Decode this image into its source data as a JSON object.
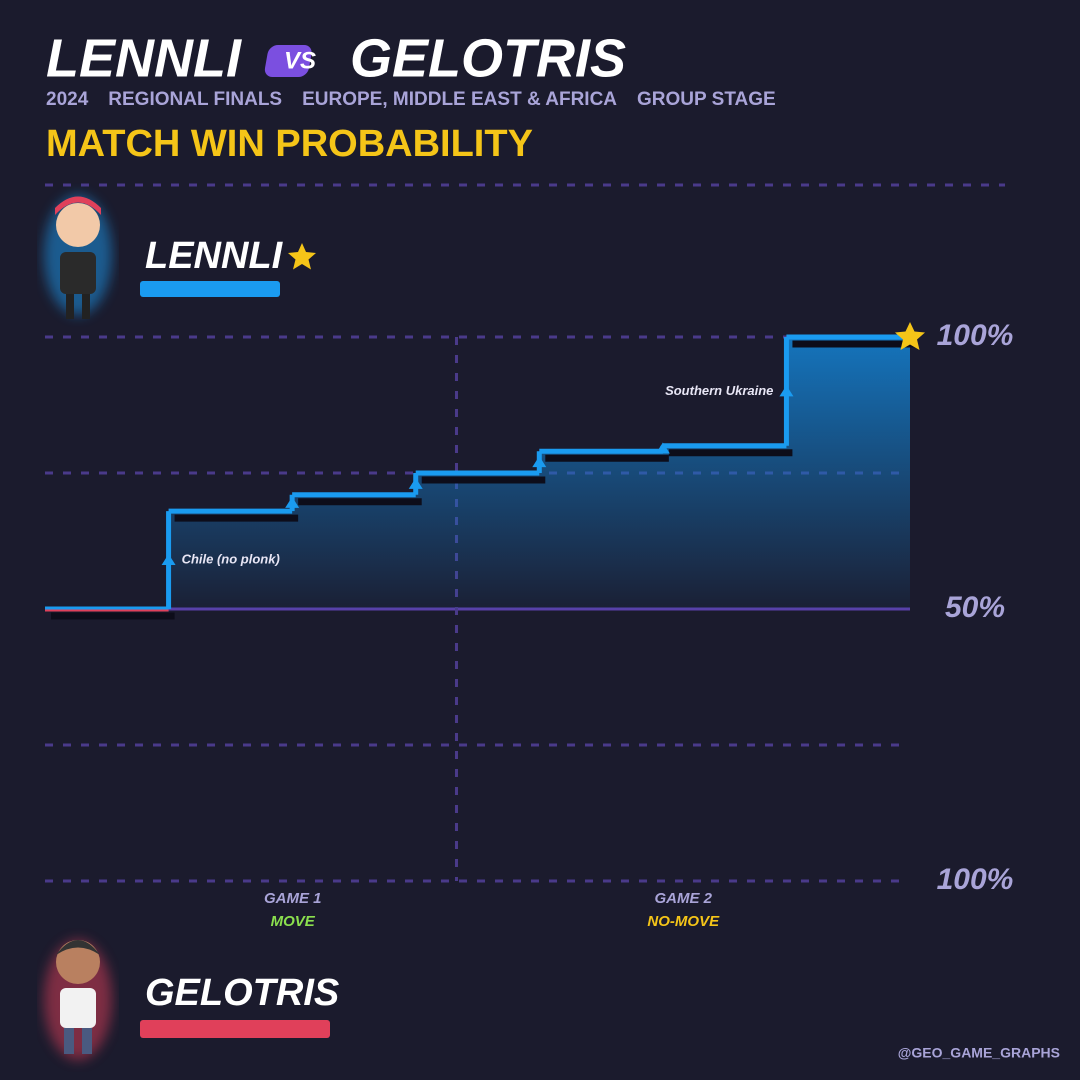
{
  "header": {
    "title_left": "LENNLI",
    "title_vs": "VS",
    "title_right": "GELOTRIS",
    "subtitle": [
      "2024",
      "REGIONAL FINALS",
      "EUROPE, MIDDLE EAST & AFRICA",
      "GROUP STAGE"
    ],
    "heading": "MATCH WIN PROBABILITY"
  },
  "chart_data": {
    "type": "step",
    "x": [
      0,
      1,
      2,
      3,
      4,
      5,
      6,
      7
    ],
    "xlim": [
      0,
      7
    ],
    "series": [
      {
        "name": "LENNLI",
        "color": "#1a9bf0",
        "values": [
          50,
          68,
          71,
          75,
          79,
          80,
          100,
          100
        ]
      }
    ],
    "opponent": {
      "name": "GELOTRIS",
      "color": "#e0405a"
    },
    "ylim": [
      0,
      100
    ],
    "yticks": [
      {
        "value": 100,
        "label": "100%"
      },
      {
        "value": 75,
        "label": null
      },
      {
        "value": 50,
        "label": "50%"
      },
      {
        "value": 25,
        "label": null
      },
      {
        "value": 0,
        "label": "100%"
      }
    ],
    "grid": true,
    "annotations": [
      {
        "x": 1,
        "text": "Chile (no plonk)",
        "side": "right"
      },
      {
        "x": 6,
        "text": "Southern Ukraine",
        "side": "left"
      }
    ],
    "games": [
      {
        "label": "GAME 1",
        "mode": "MOVE",
        "mode_color": "#8be04e",
        "start": 0,
        "end": 3.33
      },
      {
        "label": "GAME 2",
        "mode": "NO-MOVE",
        "mode_color": "#f5c518",
        "start": 3.33,
        "end": 7
      }
    ]
  },
  "credit": "@GEO_GAME_GRAPHS"
}
